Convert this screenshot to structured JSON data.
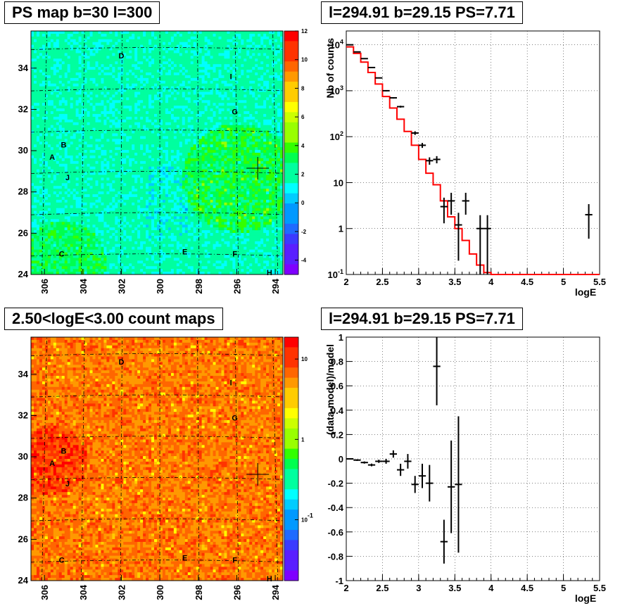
{
  "panels": [
    {
      "title": "PS map b=30 l=300"
    },
    {
      "title": "l=294.91 b=29.15 PS=7.71"
    },
    {
      "title": "2.50<logE<3.00 count maps"
    },
    {
      "title": "l=294.91 b=29.15 PS=7.71"
    }
  ],
  "chart_data": [
    {
      "type": "heatmap",
      "title": "PS map b=30 l=300",
      "x_ticks": [
        "306",
        "304",
        "302",
        "300",
        "298",
        "296",
        "294"
      ],
      "y_ticks": [
        "24",
        "26",
        "28",
        "30",
        "32",
        "34"
      ],
      "xlim": [
        306.7,
        293.6
      ],
      "ylim": [
        24.0,
        35.8
      ],
      "z_ticks": [
        "12",
        "10",
        "8",
        "6",
        "4",
        "2",
        "0",
        "-2",
        "-4"
      ],
      "zlim": [
        -5,
        12
      ],
      "labels": [
        {
          "text": "D",
          "l": 302.0,
          "b": 34.6
        },
        {
          "text": "I",
          "l": 296.3,
          "b": 33.6
        },
        {
          "text": "G",
          "l": 296.1,
          "b": 31.9
        },
        {
          "text": "B",
          "l": 305.0,
          "b": 30.3
        },
        {
          "text": "A",
          "l": 305.6,
          "b": 29.7
        },
        {
          "text": "J",
          "l": 304.8,
          "b": 28.7
        },
        {
          "text": "C",
          "l": 305.1,
          "b": 25.0
        },
        {
          "text": "E",
          "l": 298.7,
          "b": 25.1
        },
        {
          "text": "F",
          "l": 296.1,
          "b": 25.0
        },
        {
          "text": "H",
          "l": 294.3,
          "b": 24.1
        }
      ],
      "marker": {
        "l": 294.91,
        "b": 29.15
      }
    },
    {
      "type": "line",
      "title": "l=294.91 b=29.15 PS=7.71",
      "xlabel": "logE",
      "ylabel": "Nb of counts",
      "yscale": "log",
      "xlim": [
        2.0,
        5.5
      ],
      "ylim": [
        0.1,
        20000
      ],
      "x_ticks": [
        "2",
        "2.5",
        "3",
        "3.5",
        "4",
        "4.5",
        "5",
        "5.5"
      ],
      "y_ticks": [
        "10^-1",
        "1",
        "10",
        "10^2",
        "10^3",
        "10^4"
      ],
      "model_step": {
        "edges": [
          2.0,
          2.1,
          2.2,
          2.3,
          2.4,
          2.5,
          2.6,
          2.7,
          2.8,
          2.9,
          3.0,
          3.1,
          3.2,
          3.3,
          3.4,
          3.5,
          3.6,
          3.7,
          3.8,
          3.9,
          4.0,
          5.5
        ],
        "values": [
          9000,
          6500,
          4200,
          2500,
          1400,
          750,
          420,
          240,
          130,
          65,
          32,
          16,
          9,
          4,
          1.8,
          1.0,
          0.55,
          0.28,
          0.16,
          0.11,
          0.1
        ],
        "color": "#ff0000"
      },
      "data_points": [
        {
          "x": 2.05,
          "y": 10000,
          "err": 100
        },
        {
          "x": 2.15,
          "y": 7000,
          "err": 85
        },
        {
          "x": 2.25,
          "y": 5000,
          "err": 70
        },
        {
          "x": 2.35,
          "y": 3200,
          "err": 56
        },
        {
          "x": 2.45,
          "y": 1900,
          "err": 44
        },
        {
          "x": 2.55,
          "y": 1000,
          "err": 32
        },
        {
          "x": 2.65,
          "y": 700,
          "err": 26
        },
        {
          "x": 2.75,
          "y": 450,
          "err": 21
        },
        {
          "x": 2.95,
          "y": 120,
          "err": 11
        },
        {
          "x": 3.05,
          "y": 65,
          "err": 8
        },
        {
          "x": 3.15,
          "y": 30,
          "err": 5.5
        },
        {
          "x": 3.25,
          "y": 32,
          "err": 5.7
        },
        {
          "x": 3.35,
          "y": 3,
          "err": 1.7
        },
        {
          "x": 3.45,
          "y": 4,
          "err": 2
        },
        {
          "x": 3.55,
          "y": 1.2,
          "err": 1.0
        },
        {
          "x": 3.65,
          "y": 4,
          "err": 2
        },
        {
          "x": 3.85,
          "y": 1,
          "err": 0.95
        },
        {
          "x": 3.95,
          "y": 1,
          "err": 0.95
        },
        {
          "x": 5.35,
          "y": 2,
          "err": 1.4
        }
      ]
    },
    {
      "type": "heatmap",
      "title": "2.50<logE<3.00 count maps",
      "x_ticks": [
        "306",
        "304",
        "302",
        "300",
        "298",
        "296",
        "294"
      ],
      "y_ticks": [
        "24",
        "26",
        "28",
        "30",
        "32",
        "34"
      ],
      "xlim": [
        306.7,
        293.6
      ],
      "ylim": [
        24.0,
        35.8
      ],
      "z_ticks": [
        "10",
        "1",
        "10^-1"
      ],
      "zscale": "log",
      "labels": [
        {
          "text": "D",
          "l": 302.0,
          "b": 34.6
        },
        {
          "text": "I",
          "l": 296.3,
          "b": 33.6
        },
        {
          "text": "G",
          "l": 296.1,
          "b": 31.9
        },
        {
          "text": "B",
          "l": 305.0,
          "b": 30.3
        },
        {
          "text": "A",
          "l": 305.6,
          "b": 29.7
        },
        {
          "text": "J",
          "l": 304.8,
          "b": 28.7
        },
        {
          "text": "C",
          "l": 305.1,
          "b": 25.0
        },
        {
          "text": "E",
          "l": 298.7,
          "b": 25.1
        },
        {
          "text": "F",
          "l": 296.1,
          "b": 25.0
        },
        {
          "text": "H",
          "l": 294.3,
          "b": 24.1
        }
      ],
      "marker": {
        "l": 294.91,
        "b": 29.15
      }
    },
    {
      "type": "scatter",
      "title": "l=294.91 b=29.15 PS=7.71",
      "xlabel": "logE",
      "ylabel": "(data-model)/model",
      "xlim": [
        2.0,
        5.5
      ],
      "ylim": [
        -1.0,
        1.0
      ],
      "x_ticks": [
        "2",
        "2.5",
        "3",
        "3.5",
        "4",
        "4.5",
        "5",
        "5.5"
      ],
      "y_ticks": [
        "-1",
        "-0.8",
        "-0.6",
        "-0.4",
        "-0.2",
        "0",
        "0.2",
        "0.4",
        "0.6",
        "0.8",
        "1"
      ],
      "data_points": [
        {
          "x": 2.05,
          "y": 0.0,
          "err": 0.005
        },
        {
          "x": 2.15,
          "y": -0.01,
          "err": 0.007
        },
        {
          "x": 2.25,
          "y": -0.03,
          "err": 0.009
        },
        {
          "x": 2.35,
          "y": -0.05,
          "err": 0.011
        },
        {
          "x": 2.45,
          "y": -0.02,
          "err": 0.013
        },
        {
          "x": 2.55,
          "y": -0.02,
          "err": 0.02
        },
        {
          "x": 2.65,
          "y": 0.04,
          "err": 0.03
        },
        {
          "x": 2.75,
          "y": -0.09,
          "err": 0.05
        },
        {
          "x": 2.85,
          "y": -0.02,
          "err": 0.06
        },
        {
          "x": 2.95,
          "y": -0.21,
          "err": 0.07
        },
        {
          "x": 3.05,
          "y": -0.14,
          "err": 0.1
        },
        {
          "x": 3.15,
          "y": -0.2,
          "err": 0.15
        },
        {
          "x": 3.25,
          "y": 0.76,
          "err": 0.32
        },
        {
          "x": 3.35,
          "y": -0.68,
          "err": 0.18
        },
        {
          "x": 3.45,
          "y": -0.23,
          "err": 0.38
        },
        {
          "x": 3.55,
          "y": -0.21,
          "err": 0.56
        }
      ]
    }
  ]
}
